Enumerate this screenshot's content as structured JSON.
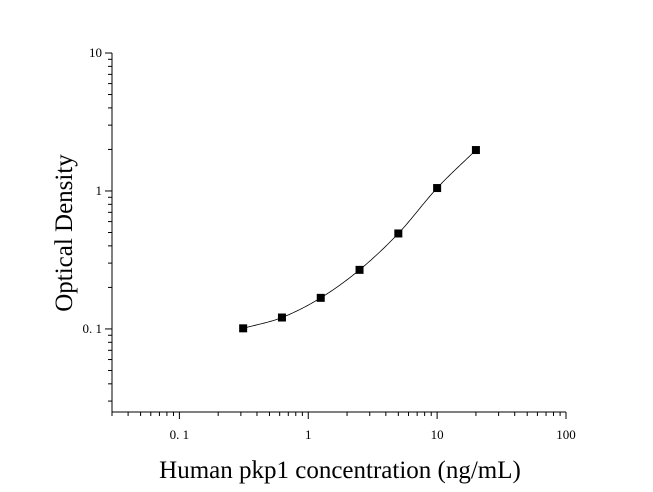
{
  "chart_data": {
    "type": "scatter",
    "title": "",
    "xlabel": "Human pkp1 concentration (ng/mL)",
    "ylabel": "Optical Density",
    "x_scale": "log",
    "y_scale": "log",
    "xlim": [
      0.03,
      100
    ],
    "ylim": [
      0.025,
      10
    ],
    "x_ticks": [
      {
        "value": 0.1,
        "label": "0. 1"
      },
      {
        "value": 1,
        "label": "1"
      },
      {
        "value": 10,
        "label": "10"
      },
      {
        "value": 100,
        "label": "100"
      }
    ],
    "y_ticks": [
      {
        "value": 0.1,
        "label": "0. 1"
      },
      {
        "value": 1,
        "label": "1"
      },
      {
        "value": 10,
        "label": "10"
      }
    ],
    "grid": false,
    "legend": "none",
    "series": [
      {
        "marker": "square",
        "fit_line": true,
        "x": [
          0.3125,
          0.625,
          1.25,
          2.5,
          5,
          10,
          20
        ],
        "y": [
          0.101,
          0.121,
          0.168,
          0.268,
          0.492,
          1.05,
          1.98
        ]
      }
    ],
    "colors": {
      "marker": "#000000",
      "line": "#000000",
      "axis": "#000000"
    }
  }
}
